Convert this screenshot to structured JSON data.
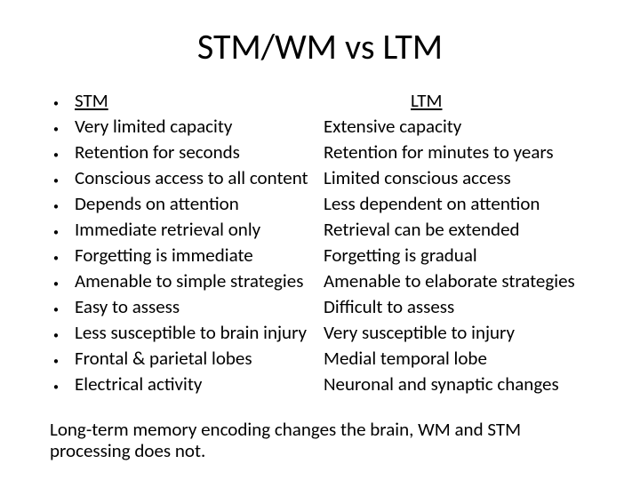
{
  "title": "STM/WM vs LTM",
  "headers": {
    "stm": "STM",
    "ltm": "LTM"
  },
  "rows": [
    {
      "stm": "Very limited capacity",
      "ltm": "Extensive capacity"
    },
    {
      "stm": "Retention for seconds",
      "ltm": "Retention for minutes to years"
    },
    {
      "stm": "Conscious access to all content",
      "ltm": "Limited conscious access"
    },
    {
      "stm": "Depends on attention",
      "ltm": "Less dependent on attention"
    },
    {
      "stm": "Immediate retrieval only",
      "ltm": "Retrieval can be extended"
    },
    {
      "stm": "Forgetting is immediate",
      "ltm": "Forgetting is gradual"
    },
    {
      "stm": "Amenable to simple strategies",
      "ltm": "Amenable to elaborate strategies"
    },
    {
      "stm": "Easy to assess",
      "ltm": "Difficult to assess"
    },
    {
      "stm": "Less susceptible to brain injury",
      "ltm": "Very susceptible to injury"
    },
    {
      "stm": "Frontal & parietal lobes",
      "ltm": "Medial temporal lobe"
    },
    {
      "stm": "Electrical activity",
      "ltm": "Neuronal and synaptic changes"
    }
  ],
  "footer": "Long-term memory encoding changes the brain, WM and STM processing does not.",
  "style": {
    "background_color": "#ffffff",
    "text_color": "#000000",
    "title_fontsize": 40,
    "body_fontsize": 21,
    "line_height": 25,
    "bullet_char": "•",
    "header_decoration": "underline"
  }
}
